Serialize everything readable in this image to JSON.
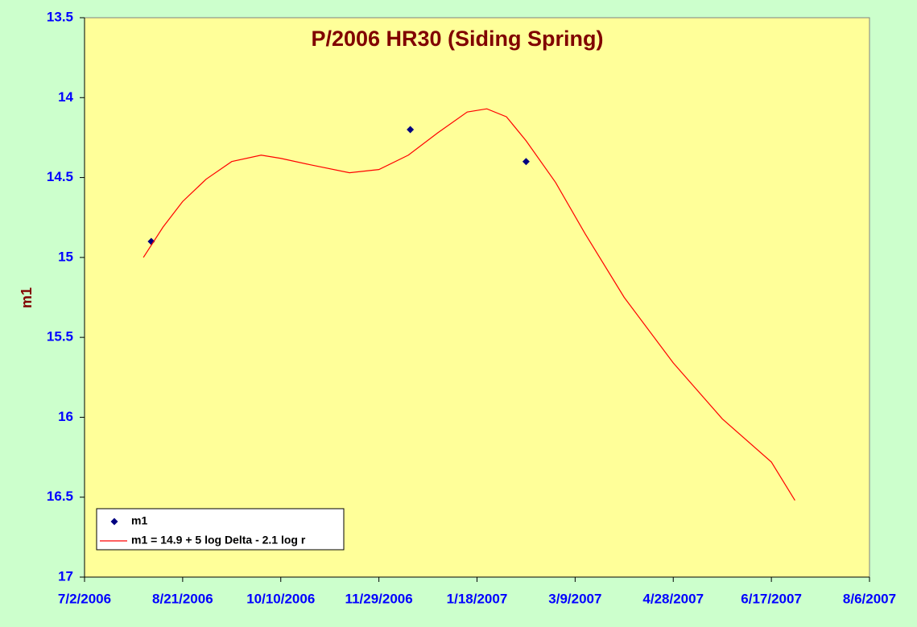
{
  "chart_data": {
    "type": "scatter-line",
    "title": "P/2006 HR30 (Siding Spring)",
    "y_label": "m1",
    "xlim": [
      "7/2/2006",
      "8/6/2007"
    ],
    "xticks": [
      "7/2/2006",
      "8/21/2006",
      "10/10/2006",
      "11/29/2006",
      "1/18/2007",
      "3/9/2007",
      "4/28/2007",
      "6/17/2007",
      "8/6/2007"
    ],
    "ylim": [
      17,
      13.5
    ],
    "yticks": [
      13.5,
      14,
      14.5,
      15,
      15.5,
      16,
      16.5,
      17
    ],
    "y_inverted": true,
    "legend_position": "lower-left",
    "series": [
      {
        "name": "m1",
        "kind": "points",
        "color": "#000080",
        "x": [
          "8/5/2006",
          "12/15/2006",
          "2/12/2007"
        ],
        "values": [
          14.9,
          14.2,
          14.4
        ]
      },
      {
        "name": "m1 = 14.9 + 5 log Delta - 2.1 log r",
        "kind": "line",
        "color": "#ff0000",
        "x": [
          "8/1/2006",
          "8/11/2006",
          "8/21/2006",
          "9/2/2006",
          "9/15/2006",
          "9/30/2006",
          "10/10/2006",
          "10/25/2006",
          "11/14/2006",
          "11/29/2006",
          "12/14/2006",
          "12/29/2006",
          "1/13/2007",
          "1/23/2007",
          "2/2/2007",
          "2/12/2007",
          "2/27/2007",
          "3/14/2007",
          "4/3/2007",
          "4/28/2007",
          "5/23/2007",
          "6/17/2007",
          "6/29/2007"
        ],
        "values": [
          15.0,
          14.81,
          14.65,
          14.51,
          14.4,
          14.36,
          14.38,
          14.42,
          14.47,
          14.45,
          14.36,
          14.22,
          14.09,
          14.07,
          14.12,
          14.27,
          14.53,
          14.85,
          15.25,
          15.66,
          16.01,
          16.28,
          16.52
        ]
      }
    ]
  }
}
